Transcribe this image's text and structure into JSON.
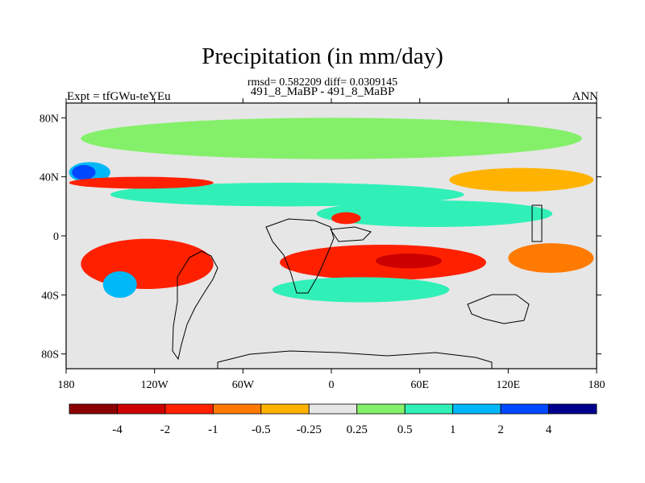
{
  "header": {
    "title": "Precipitation (in mm/day)",
    "stats": "rmsd= 0.582209 diff= 0.0309145",
    "cases": "491_8_MaBP - 491_8_MaBP",
    "expt": "Expt = tfGWu-teYEu",
    "season": "ANN"
  },
  "chart_data": {
    "type": "heatmap",
    "title": "Precipitation (in mm/day)",
    "subtitle": "491_8_MaBP - 491_8_MaBP",
    "xlabel": "",
    "ylabel": "",
    "x_ticks": [
      {
        "value": -180,
        "label": "180"
      },
      {
        "value": -120,
        "label": "120W"
      },
      {
        "value": -60,
        "label": "60W"
      },
      {
        "value": 0,
        "label": "0"
      },
      {
        "value": 60,
        "label": "60E"
      },
      {
        "value": 120,
        "label": "120E"
      },
      {
        "value": 180,
        "label": "180"
      }
    ],
    "y_ticks": [
      {
        "value": 80,
        "label": "80N"
      },
      {
        "value": 40,
        "label": "40N"
      },
      {
        "value": 0,
        "label": "0"
      },
      {
        "value": -40,
        "label": "40S"
      },
      {
        "value": -80,
        "label": "80S"
      }
    ],
    "xlim": [
      -180,
      180
    ],
    "ylim": [
      -90,
      90
    ],
    "colorbar": {
      "colors": [
        "#8b0000",
        "#cc0000",
        "#ff2000",
        "#ff7a00",
        "#ffb300",
        "#e6e6e6",
        "#84f06a",
        "#30f0b8",
        "#00b8f8",
        "#0048ff",
        "#00008f"
      ],
      "labels": [
        "-4",
        "-2",
        "-1",
        "-0.5",
        "-0.25",
        "0.25",
        "0.5",
        "1",
        "2",
        "4"
      ]
    },
    "regions": [
      {
        "name": "north-high-latitude-wet-band",
        "level": 6,
        "lon": [
          -170,
          170
        ],
        "lat": [
          52,
          80
        ]
      },
      {
        "name": "north-mid-latitude-moist-band",
        "level": 7,
        "lon": [
          -150,
          90
        ],
        "lat": [
          20,
          36
        ]
      },
      {
        "name": "north-pacific-wet-patch",
        "level": 8,
        "lon": [
          -178,
          -150
        ],
        "lat": [
          36,
          50
        ]
      },
      {
        "name": "north-pacific-dipole-wet-core",
        "level": 9,
        "lon": [
          -176,
          -160
        ],
        "lat": [
          38,
          48
        ]
      },
      {
        "name": "north-pacific-dry-band",
        "level": 2,
        "lon": [
          -178,
          -80
        ],
        "lat": [
          32,
          40
        ]
      },
      {
        "name": "east-asia-dry-patch",
        "level": 4,
        "lon": [
          80,
          178
        ],
        "lat": [
          30,
          46
        ]
      },
      {
        "name": "indian-ocean-moist-band",
        "level": 7,
        "lon": [
          -10,
          150
        ],
        "lat": [
          6,
          24
        ]
      },
      {
        "name": "africa-dry-core",
        "level": 2,
        "lon": [
          0,
          20
        ],
        "lat": [
          8,
          16
        ]
      },
      {
        "name": "south-pacific-dry-band",
        "level": 2,
        "lon": [
          -170,
          -80
        ],
        "lat": [
          -36,
          -2
        ]
      },
      {
        "name": "south-atlantic-indian-dry-band",
        "level": 2,
        "lon": [
          -35,
          105
        ],
        "lat": [
          -30,
          -6
        ]
      },
      {
        "name": "south-indian-dry-core",
        "level": 1,
        "lon": [
          30,
          75
        ],
        "lat": [
          -22,
          -12
        ]
      },
      {
        "name": "south-pacific-moist-patch",
        "level": 8,
        "lon": [
          -155,
          -132
        ],
        "lat": [
          -42,
          -24
        ]
      },
      {
        "name": "southern-wet-band",
        "level": 7,
        "lon": [
          -40,
          80
        ],
        "lat": [
          -45,
          -28
        ]
      },
      {
        "name": "southeast-pacific-dry-patch",
        "level": 3,
        "lon": [
          120,
          178
        ],
        "lat": [
          -25,
          -5
        ]
      }
    ]
  }
}
